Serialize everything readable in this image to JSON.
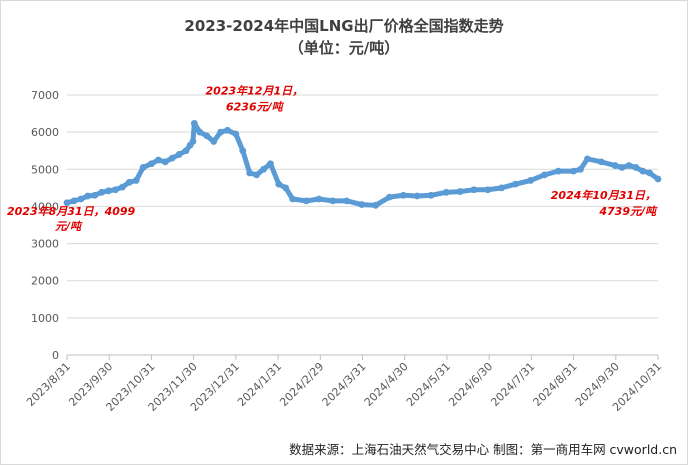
{
  "chart_data": {
    "type": "line",
    "title": "2023-2024年中国LNG出厂价格全国指数走势",
    "subtitle": "（单位：元/吨）",
    "ylim": [
      0,
      7000
    ],
    "yticks": [
      0,
      1000,
      2000,
      3000,
      4000,
      5000,
      6000,
      7000
    ],
    "x_tick_labels": [
      "2023/8/31",
      "2023/9/30",
      "2023/10/31",
      "2023/11/30",
      "2023/12/31",
      "2024/1/31",
      "2024/2/29",
      "2024/3/31",
      "2024/4/30",
      "2024/5/31",
      "2024/6/30",
      "2024/7/31",
      "2024/8/31",
      "2024/9/30",
      "2024/10/31"
    ],
    "grid": "horizontal",
    "legend": "none",
    "series_color": "#5b9bd5",
    "series": [
      {
        "x": [
          "2023-08-31",
          "2023-09-05",
          "2023-09-10",
          "2023-09-15",
          "2023-09-20",
          "2023-09-25",
          "2023-09-30",
          "2023-10-05",
          "2023-10-10",
          "2023-10-15",
          "2023-10-20",
          "2023-10-25",
          "2023-10-31",
          "2023-11-05",
          "2023-11-10",
          "2023-11-15",
          "2023-11-20",
          "2023-11-25",
          "2023-11-28",
          "2023-11-30",
          "2023-12-01",
          "2023-12-05",
          "2023-12-10",
          "2023-12-15",
          "2023-12-20",
          "2023-12-25",
          "2023-12-31",
          "2024-01-05",
          "2024-01-10",
          "2024-01-15",
          "2024-01-20",
          "2024-01-25",
          "2024-01-31",
          "2024-02-05",
          "2024-02-10",
          "2024-02-20",
          "2024-02-29",
          "2024-03-10",
          "2024-03-20",
          "2024-03-31",
          "2024-04-10",
          "2024-04-20",
          "2024-04-30",
          "2024-05-10",
          "2024-05-20",
          "2024-05-31",
          "2024-06-10",
          "2024-06-20",
          "2024-06-30",
          "2024-07-10",
          "2024-07-20",
          "2024-07-31",
          "2024-08-10",
          "2024-08-20",
          "2024-08-31",
          "2024-09-05",
          "2024-09-10",
          "2024-09-20",
          "2024-09-30",
          "2024-10-05",
          "2024-10-10",
          "2024-10-15",
          "2024-10-20",
          "2024-10-25",
          "2024-10-31"
        ],
        "values": [
          4099,
          4150,
          4200,
          4280,
          4300,
          4380,
          4420,
          4450,
          4520,
          4650,
          4700,
          5050,
          5150,
          5250,
          5200,
          5300,
          5400,
          5500,
          5650,
          5750,
          6236,
          6000,
          5900,
          5750,
          6000,
          6050,
          5950,
          5500,
          4900,
          4850,
          5000,
          5150,
          4600,
          4500,
          4200,
          4150,
          4200,
          4150,
          4150,
          4050,
          4030,
          4250,
          4300,
          4280,
          4300,
          4380,
          4400,
          4450,
          4450,
          4500,
          4600,
          4700,
          4850,
          4950,
          4950,
          5000,
          5280,
          5200,
          5100,
          5050,
          5100,
          5050,
          4950,
          4900,
          4739
        ]
      }
    ],
    "annotations": [
      {
        "date": "2023-08-31",
        "value": 4099,
        "lines": [
          "2023年8月31日，4099",
          "元/吨"
        ]
      },
      {
        "date": "2023-12-01",
        "value": 6236,
        "lines": [
          "2023年12月1日，",
          "6236元/吨"
        ]
      },
      {
        "date": "2024-10-31",
        "value": 4739,
        "lines": [
          "2024年10月31日，",
          "4739元/吨"
        ]
      }
    ]
  },
  "source_text": "数据来源：上海石油天然气交易中心 制图：第一商用车网 cvworld.cn"
}
